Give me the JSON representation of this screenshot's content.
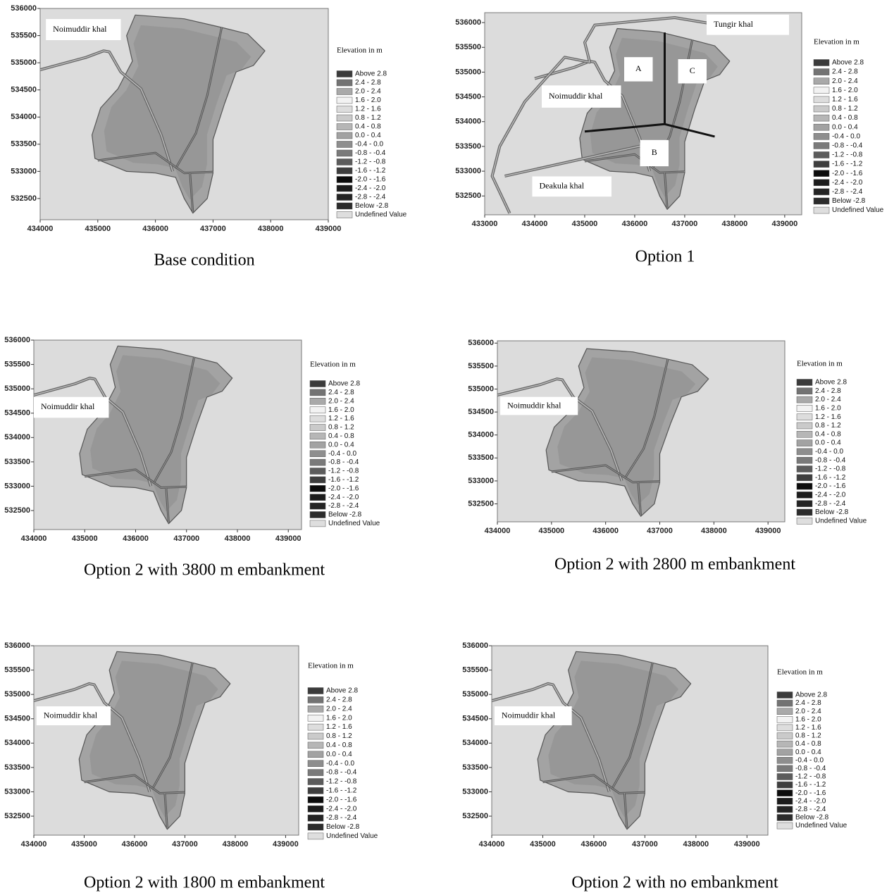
{
  "legend": {
    "title": "Elevation in m",
    "items": [
      {
        "label": "Above  2.8",
        "color": "#3b3b3b"
      },
      {
        "label": "2.4 -  2.8",
        "color": "#737373"
      },
      {
        "label": "2.0 -  2.4",
        "color": "#a9a9a9"
      },
      {
        "label": "1.6 -  2.0",
        "color": "#f2f2f2"
      },
      {
        "label": "1.2 -  1.6",
        "color": "#dddddd"
      },
      {
        "label": "0.8 -  1.2",
        "color": "#cacaca"
      },
      {
        "label": "0.4 -  0.8",
        "color": "#b6b6b6"
      },
      {
        "label": "0.0 -  0.4",
        "color": "#a2a2a2"
      },
      {
        "label": "-0.4 -  0.0",
        "color": "#8e8e8e"
      },
      {
        "label": "-0.8 - -0.4",
        "color": "#7a7a7a"
      },
      {
        "label": "-1.2 - -0.8",
        "color": "#5c5c5c"
      },
      {
        "label": "-1.6 - -1.2",
        "color": "#3e3e3e"
      },
      {
        "label": "-2.0 - -1.6",
        "color": "#0c0c0c"
      },
      {
        "label": "-2.4 - -2.0",
        "color": "#1c1c1c"
      },
      {
        "label": "-2.8 - -2.4",
        "color": "#242424"
      },
      {
        "label": "Below -2.8",
        "color": "#2c2c2c"
      },
      {
        "label": "Undefined Value",
        "color": "#dedede"
      }
    ]
  },
  "panels": [
    {
      "caption": "Base condition",
      "xlim": [
        434000,
        439000
      ],
      "ylim": [
        532110,
        536000
      ],
      "xticks": [
        434000,
        435000,
        436000,
        437000,
        438000,
        439000
      ],
      "yticks": [
        532500,
        533000,
        533500,
        534000,
        534500,
        535000,
        535500,
        536000
      ],
      "annotations": [
        "Noimuddir khal"
      ]
    },
    {
      "caption": "Option 1",
      "xlim": [
        433000,
        439340
      ],
      "ylim": [
        532120,
        536200
      ],
      "xticks": [
        433000,
        434000,
        435000,
        436000,
        437000,
        438000,
        439000
      ],
      "yticks": [
        532500,
        533000,
        533500,
        534000,
        534500,
        535000,
        535500,
        536000
      ],
      "annotations": [
        "Tungir khal",
        "A",
        "C",
        "Noimuddir khal",
        "B",
        "Deakula khal"
      ]
    },
    {
      "caption": "Option 2 with 3800 m embankment",
      "xlim": [
        434000,
        439260
      ],
      "ylim": [
        532110,
        536000
      ],
      "xticks": [
        434000,
        435000,
        436000,
        437000,
        438000,
        439000
      ],
      "yticks": [
        532500,
        533000,
        533500,
        534000,
        534500,
        535000,
        535500,
        536000
      ],
      "annotations": [
        "Noimuddir khal"
      ]
    },
    {
      "caption": "Option 2 with 2800 m embankment",
      "xlim": [
        434000,
        439310
      ],
      "ylim": [
        532110,
        536050
      ],
      "xticks": [
        434000,
        435000,
        436000,
        437000,
        438000,
        439000
      ],
      "yticks": [
        532500,
        533000,
        533500,
        534000,
        534500,
        535000,
        535500,
        536000
      ],
      "annotations": [
        "Noimuddir khal"
      ]
    },
    {
      "caption": "Option 2 with 1800 m embankment",
      "xlim": [
        434000,
        439260
      ],
      "ylim": [
        532110,
        536000
      ],
      "xticks": [
        434000,
        435000,
        436000,
        437000,
        438000,
        439000
      ],
      "yticks": [
        532500,
        533000,
        533500,
        534000,
        534500,
        535000,
        535500,
        536000
      ],
      "annotations": [
        "Noimuddir khal"
      ]
    },
    {
      "caption": "Option 2 with no embankment",
      "xlim": [
        434000,
        439410
      ],
      "ylim": [
        532110,
        536000
      ],
      "xticks": [
        434000,
        435000,
        436000,
        437000,
        438000,
        439000
      ],
      "yticks": [
        532500,
        533000,
        533500,
        534000,
        534500,
        535000,
        535500,
        536000
      ],
      "annotations": [
        "Noimuddir khal"
      ]
    }
  ]
}
